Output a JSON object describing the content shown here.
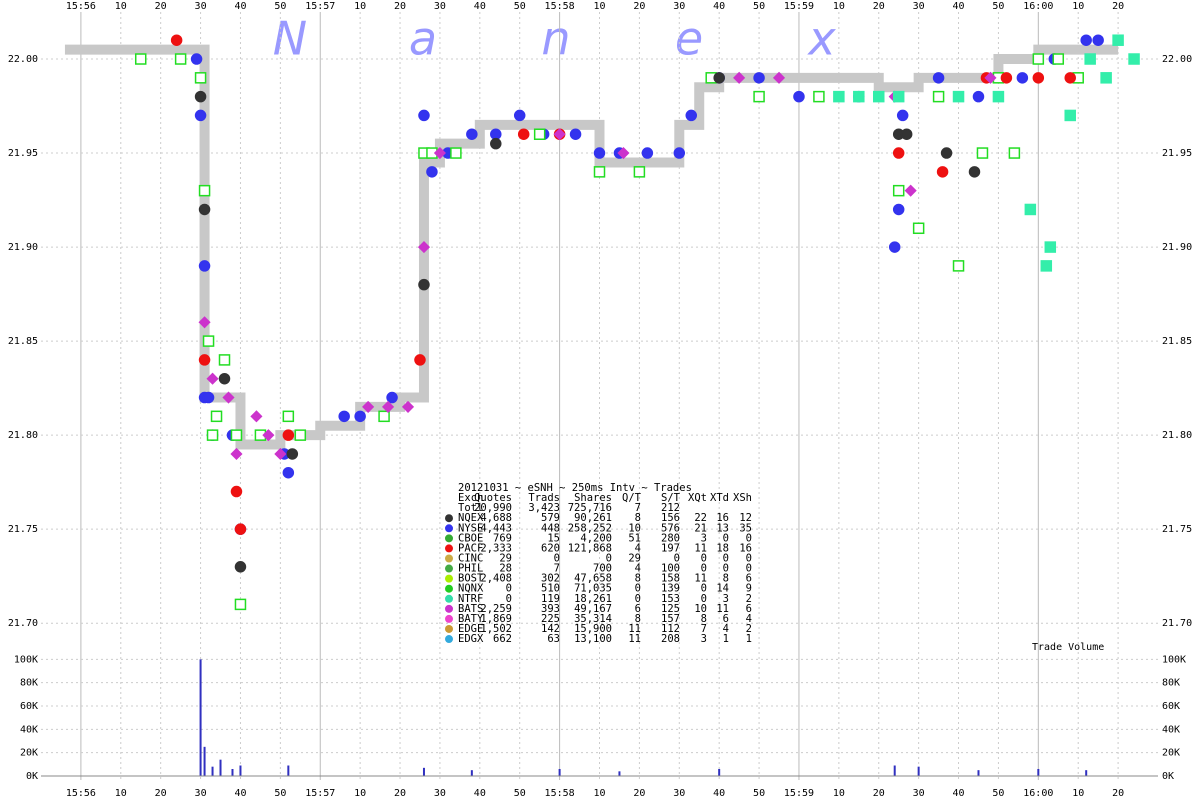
{
  "chart_data": [
    {
      "type": "scatter",
      "watermark": [
        "N",
        "a",
        "n",
        "e",
        "x"
      ],
      "xlim": [
        -10,
        270
      ],
      "xticks": [
        {
          "value": 0,
          "label": "15:56"
        },
        10,
        20,
        30,
        40,
        50,
        {
          "value": 60,
          "label": "15:57"
        },
        {
          "value": 70,
          "label": "10"
        },
        {
          "value": 80,
          "label": "20"
        },
        {
          "value": 90,
          "label": "30"
        },
        {
          "value": 100,
          "label": "40"
        },
        {
          "value": 110,
          "label": "50"
        },
        {
          "value": 120,
          "label": "15:58"
        },
        {
          "value": 130,
          "label": "10"
        },
        {
          "value": 140,
          "label": "20"
        },
        {
          "value": 150,
          "label": "30"
        },
        {
          "value": 160,
          "label": "40"
        },
        {
          "value": 170,
          "label": "50"
        },
        {
          "value": 180,
          "label": "15:59"
        },
        {
          "value": 190,
          "label": "10"
        },
        {
          "value": 200,
          "label": "20"
        },
        {
          "value": 210,
          "label": "30"
        },
        {
          "value": 220,
          "label": "40"
        },
        {
          "value": 230,
          "label": "50"
        },
        {
          "value": 240,
          "label": "16:00"
        },
        {
          "value": 250,
          "label": "10"
        },
        {
          "value": 260,
          "label": "20"
        }
      ],
      "ylim": [
        21.69,
        22.025
      ],
      "yticks": [
        {
          "value": 21.7,
          "label": "21.70"
        },
        21.75,
        {
          "value": 21.8,
          "label": "21.80"
        },
        21.85,
        {
          "value": 21.9,
          "label": "21.90"
        },
        21.95,
        {
          "value": 22,
          "label": "22.00"
        }
      ],
      "grid": true,
      "nbbo": {
        "color": "#c8c8c8",
        "x": [
          -4,
          30,
          31,
          40,
          50,
          60,
          70,
          80,
          86,
          90,
          100,
          130,
          150,
          155,
          160,
          200,
          210,
          230,
          240,
          260
        ],
        "values": [
          22.005,
          22.005,
          21.82,
          21.795,
          21.8,
          21.805,
          21.815,
          21.82,
          21.945,
          21.955,
          21.965,
          21.945,
          21.965,
          21.985,
          21.99,
          21.985,
          21.99,
          22.0,
          22.005,
          22.005
        ]
      },
      "series": [
        {
          "name": "NYSE",
          "color": "#3333ee",
          "marker": "circle",
          "filled": true,
          "x": [
            29,
            30,
            31,
            31,
            32,
            33,
            38,
            40,
            51,
            52,
            66,
            70,
            78,
            86,
            88,
            92,
            98,
            104,
            110,
            116,
            124,
            130,
            135,
            142,
            150,
            153,
            160,
            170,
            180,
            195,
            204,
            205,
            206,
            215,
            225,
            236,
            244,
            252,
            255
          ],
          "values": [
            22.0,
            21.97,
            21.89,
            21.82,
            21.82,
            21.8,
            21.8,
            21.75,
            21.79,
            21.78,
            21.81,
            21.81,
            21.82,
            21.97,
            21.94,
            21.95,
            21.96,
            21.96,
            21.97,
            21.96,
            21.96,
            21.95,
            21.95,
            21.95,
            21.95,
            21.97,
            21.99,
            21.99,
            21.98,
            21.98,
            21.9,
            21.92,
            21.97,
            21.99,
            21.98,
            21.99,
            22.0,
            22.01,
            22.01
          ]
        },
        {
          "name": "BOST",
          "color": "#22dd22",
          "marker": "square",
          "filled": false,
          "x": [
            15,
            25,
            30,
            31,
            32,
            33,
            34,
            36,
            39,
            40,
            45,
            52,
            55,
            76,
            86,
            88,
            94,
            115,
            130,
            140,
            158,
            170,
            185,
            205,
            210,
            215,
            220,
            226,
            230,
            234,
            240,
            245,
            250
          ],
          "values": [
            22.0,
            22.0,
            21.99,
            21.93,
            21.85,
            21.8,
            21.81,
            21.84,
            21.8,
            21.71,
            21.8,
            21.81,
            21.8,
            21.81,
            21.95,
            21.95,
            21.95,
            21.96,
            21.94,
            21.94,
            21.99,
            21.98,
            21.98,
            21.93,
            21.91,
            21.98,
            21.89,
            21.95,
            21.99,
            21.95,
            22.0,
            22.0,
            21.99
          ]
        },
        {
          "name": "NQEX",
          "color": "#333333",
          "marker": "circle",
          "filled": true,
          "x": [
            30,
            31,
            36,
            40,
            53,
            86,
            104,
            160,
            205,
            207,
            217,
            224
          ],
          "values": [
            21.98,
            21.92,
            21.83,
            21.73,
            21.79,
            21.88,
            21.955,
            21.99,
            21.96,
            21.96,
            21.95,
            21.94
          ]
        },
        {
          "name": "PACF",
          "color": "#ee1111",
          "marker": "circle",
          "filled": true,
          "x": [
            24,
            31,
            40,
            39,
            52,
            85,
            111,
            120,
            205,
            216,
            227,
            232,
            240,
            248
          ],
          "values": [
            22.01,
            21.84,
            21.75,
            21.77,
            21.8,
            21.84,
            21.96,
            21.96,
            21.95,
            21.94,
            21.99,
            21.99,
            21.99,
            21.99
          ]
        },
        {
          "name": "BATS",
          "color": "#cc33cc",
          "marker": "diamond",
          "filled": true,
          "x": [
            31,
            33,
            37,
            39,
            44,
            47,
            50,
            72,
            77,
            82,
            86,
            90,
            120,
            136,
            165,
            175,
            204,
            208,
            228
          ],
          "values": [
            21.86,
            21.83,
            21.82,
            21.79,
            21.81,
            21.8,
            21.79,
            21.815,
            21.815,
            21.815,
            21.9,
            21.95,
            21.96,
            21.95,
            21.99,
            21.99,
            21.98,
            21.93,
            21.99
          ]
        },
        {
          "name": "NTRF",
          "color": "#33eeaa",
          "marker": "square",
          "filled": true,
          "x": [
            190,
            195,
            200,
            205,
            220,
            230,
            238,
            243,
            248,
            253,
            260,
            264,
            257,
            242
          ],
          "values": [
            21.98,
            21.98,
            21.98,
            21.98,
            21.98,
            21.98,
            21.92,
            21.9,
            21.97,
            22.0,
            22.01,
            22.0,
            21.99,
            21.89
          ]
        }
      ]
    },
    {
      "type": "bar",
      "annotation": "Trade Volume",
      "xlim": [
        -10,
        270
      ],
      "ylim": [
        0,
        108000
      ],
      "yticks": [
        {
          "value": 0,
          "label": "0K"
        },
        {
          "value": 20000,
          "label": "20K"
        },
        {
          "value": 40000,
          "label": "40K"
        },
        {
          "value": 60000,
          "label": "60K"
        },
        {
          "value": 80000,
          "label": "80K"
        },
        {
          "value": 100000,
          "label": "100K"
        }
      ],
      "color": "#3030c0",
      "x": [
        30,
        31,
        33,
        35,
        38,
        40,
        52,
        86,
        98,
        120,
        135,
        160,
        204,
        210,
        225,
        240,
        252
      ],
      "values": [
        100000,
        25000,
        8000,
        14000,
        6000,
        9000,
        9000,
        7000,
        5000,
        6000,
        4000,
        6000,
        9000,
        8000,
        5000,
        6000,
        5000
      ]
    }
  ],
  "stats_table": {
    "title": "20121031 ~ eSNH ~ 250ms Intv ~ Trades",
    "header": [
      "Exch",
      "Quotes",
      "Trads",
      "Shares",
      "Q/T",
      "S/T",
      "XQt",
      "XTd",
      "XSh"
    ],
    "rows": [
      {
        "cells": [
          "Totl",
          "20,990",
          "3,423",
          "725,716",
          "7",
          "212"
        ]
      },
      {
        "color": "#333333",
        "cells": [
          "NQEX",
          "4,688",
          "579",
          "90,261",
          "8",
          "156",
          "22",
          "16",
          "12"
        ]
      },
      {
        "color": "#3333ee",
        "cells": [
          "NYSE",
          "4,443",
          "448",
          "258,252",
          "10",
          "576",
          "21",
          "13",
          "35"
        ]
      },
      {
        "color": "#33aa33",
        "cells": [
          "CBOE",
          "769",
          "15",
          "4,200",
          "51",
          "280",
          "3",
          "0",
          "0"
        ]
      },
      {
        "color": "#ee1111",
        "cells": [
          "PACF",
          "2,333",
          "620",
          "121,868",
          "4",
          "197",
          "11",
          "18",
          "16"
        ]
      },
      {
        "color": "#ccaa44",
        "cells": [
          "CINC",
          "29",
          "0",
          "0",
          "29",
          "0",
          "0",
          "0",
          "0"
        ]
      },
      {
        "color": "#44aa44",
        "cells": [
          "PHIL",
          "28",
          "7",
          "700",
          "4",
          "100",
          "0",
          "0",
          "0"
        ]
      },
      {
        "color": "#aaee00",
        "cells": [
          "BOST",
          "2,408",
          "302",
          "47,658",
          "8",
          "158",
          "11",
          "8",
          "6"
        ]
      },
      {
        "color": "#22cc22",
        "cells": [
          "NQNX",
          "0",
          "510",
          "71,035",
          "0",
          "139",
          "0",
          "14",
          "9"
        ]
      },
      {
        "color": "#33ddaa",
        "cells": [
          "NTRF",
          "0",
          "119",
          "18,261",
          "0",
          "153",
          "0",
          "3",
          "2"
        ]
      },
      {
        "color": "#cc33cc",
        "cells": [
          "BATS",
          "2,259",
          "393",
          "49,167",
          "6",
          "125",
          "10",
          "11",
          "6"
        ]
      },
      {
        "color": "#ee44cc",
        "cells": [
          "BATY",
          "1,869",
          "225",
          "35,314",
          "8",
          "157",
          "8",
          "6",
          "4"
        ]
      },
      {
        "color": "#cc9933",
        "cells": [
          "EDGE",
          "1,502",
          "142",
          "15,900",
          "11",
          "112",
          "7",
          "4",
          "2"
        ]
      },
      {
        "color": "#33aadd",
        "cells": [
          "EDGX",
          "662",
          "63",
          "13,100",
          "11",
          "208",
          "3",
          "1",
          "1"
        ]
      }
    ]
  }
}
